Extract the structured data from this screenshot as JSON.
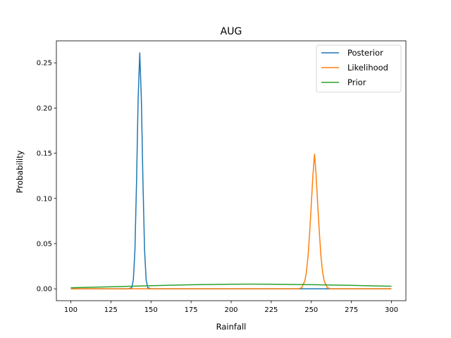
{
  "chart_data": {
    "type": "line",
    "title": "AUG",
    "xlabel": "Rainfall",
    "ylabel": "Probability",
    "xlim": [
      91,
      309
    ],
    "ylim": [
      -0.0131,
      0.2743
    ],
    "xticks": [
      100,
      125,
      150,
      175,
      200,
      225,
      250,
      275,
      300
    ],
    "yticks": [
      0.0,
      0.05,
      0.1,
      0.15,
      0.2,
      0.25
    ],
    "ytick_labels": [
      "0.00",
      "0.05",
      "0.10",
      "0.15",
      "0.20",
      "0.25"
    ],
    "grid": false,
    "legend": "top-right",
    "series": [
      {
        "name": "Posterior",
        "color": "#1f77b4",
        "x": [
          100,
          136,
          138,
          139,
          140,
          141,
          142,
          143,
          144,
          145,
          146,
          147,
          148,
          150,
          300
        ],
        "y": [
          0,
          0,
          0.0013,
          0.0098,
          0.0429,
          0.1183,
          0.2102,
          0.261,
          0.2102,
          0.1183,
          0.0429,
          0.0098,
          0.0013,
          0,
          0
        ]
      },
      {
        "name": "Likelihood",
        "color": "#ff7f0e",
        "x": [
          100,
          242,
          244,
          246,
          247,
          248,
          249,
          250,
          251,
          252,
          253,
          254,
          255,
          256,
          257,
          258,
          260,
          262,
          300
        ],
        "y": [
          0,
          0,
          0.0012,
          0.0089,
          0.0193,
          0.0366,
          0.0627,
          0.0934,
          0.1257,
          0.149,
          0.1257,
          0.0934,
          0.0627,
          0.0366,
          0.0193,
          0.0089,
          0.0012,
          0,
          0
        ]
      },
      {
        "name": "Prior",
        "color": "#2ca02c",
        "x": [
          100,
          125,
          150,
          175,
          200,
          212,
          225,
          250,
          275,
          300
        ],
        "y": [
          0.0012,
          0.0023,
          0.0035,
          0.0045,
          0.0051,
          0.0052,
          0.0051,
          0.0046,
          0.0038,
          0.0029
        ]
      }
    ]
  }
}
